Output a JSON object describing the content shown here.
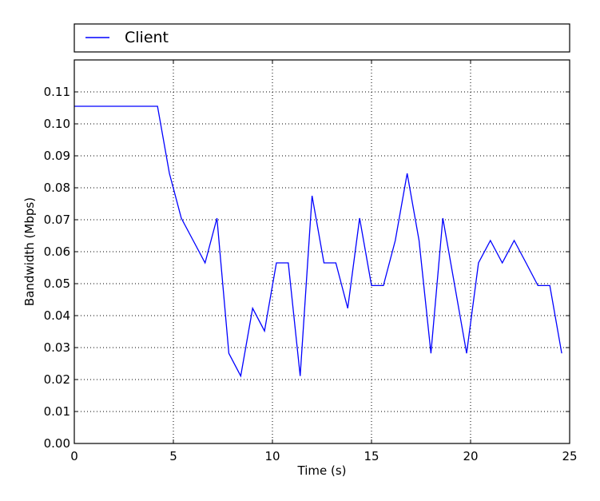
{
  "chart_data": {
    "type": "line",
    "title": "",
    "xlabel": "Time (s)",
    "ylabel": "Bandwidth (Mbps)",
    "xlim": [
      0,
      25
    ],
    "ylim": [
      0,
      0.12
    ],
    "xticks": [
      0,
      5,
      10,
      15,
      20,
      25
    ],
    "xtick_labels": [
      "0",
      "5",
      "10",
      "15",
      "20",
      "25"
    ],
    "yticks": [
      0.0,
      0.01,
      0.02,
      0.03,
      0.04,
      0.05,
      0.06,
      0.07,
      0.08,
      0.09,
      0.1,
      0.11
    ],
    "ytick_labels": [
      "0.00",
      "0.01",
      "0.02",
      "0.03",
      "0.04",
      "0.05",
      "0.06",
      "0.07",
      "0.08",
      "0.09",
      "0.10",
      "0.11"
    ],
    "grid": true,
    "legend_position": "top, above plot",
    "series": [
      {
        "name": "Client",
        "color": "#0000ff",
        "x": [
          0,
          4.2,
          4.8,
          5.4,
          6.0,
          6.6,
          7.2,
          7.8,
          8.4,
          9.0,
          9.6,
          10.2,
          10.8,
          11.4,
          12.0,
          12.6,
          13.2,
          13.8,
          14.4,
          15.0,
          15.6,
          16.2,
          16.8,
          17.4,
          18.0,
          18.6,
          19.2,
          19.8,
          20.4,
          21.0,
          21.6,
          22.2,
          22.8,
          23.4,
          24.0,
          24.6
        ],
        "y": [
          0.1055,
          0.1055,
          0.0845,
          0.0705,
          0.0635,
          0.0565,
          0.0705,
          0.0282,
          0.0211,
          0.0423,
          0.0352,
          0.0565,
          0.0565,
          0.0211,
          0.0775,
          0.0565,
          0.0565,
          0.0423,
          0.0705,
          0.0494,
          0.0494,
          0.0635,
          0.0845,
          0.0635,
          0.0282,
          0.0705,
          0.0494,
          0.0282,
          0.0565,
          0.0635,
          0.0565,
          0.0635,
          0.0565,
          0.0494,
          0.0494,
          0.0282
        ]
      }
    ]
  }
}
